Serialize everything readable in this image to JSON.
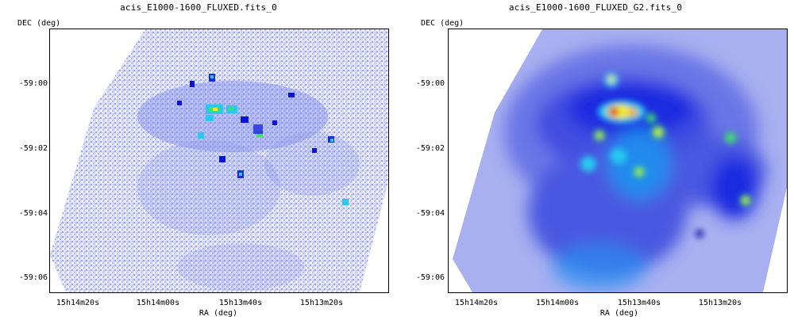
{
  "panels": [
    {
      "title": "acis_E1000-1600_FLUXED.fits_0",
      "ylabel": "DEC (deg)",
      "xlabel": "RA (deg)",
      "yticks": [
        "-59:00",
        "-59:02",
        "-59:04",
        "-59:06"
      ],
      "xticks": [
        "15h14m20s",
        "15h14m00s",
        "15h13m40s",
        "15h13m20s"
      ],
      "style": "binned"
    },
    {
      "title": "acis_E1000-1600_FLUXED_G2.fits_0",
      "ylabel": "DEC (deg)",
      "xlabel": "RA (deg)",
      "yticks": [
        "-59:00",
        "-59:02",
        "-59:04",
        "-59:06"
      ],
      "xticks": [
        "15h14m20s",
        "15h14m00s",
        "15h13m40s",
        "15h13m20s"
      ],
      "style": "smoothed"
    }
  ],
  "colors": {
    "background_low": "#ffffff",
    "low": "#c8ccf4",
    "mid": "#4a5ae0",
    "high_blue": "#0a14d8",
    "cyan": "#26c9f0",
    "green": "#3ee06a",
    "yellow": "#f4ec1a",
    "red": "#e0101a",
    "black": "#000000"
  }
}
